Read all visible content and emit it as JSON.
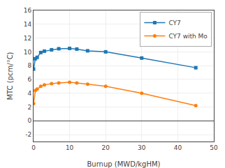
{
  "chart_data": {
    "type": "line",
    "xlabel": "Burnup (MWD/kgHM)",
    "ylabel": "MTC (pcm/°C)",
    "x": [
      0,
      0.5,
      1,
      2,
      3,
      5,
      7,
      10,
      12,
      15,
      20,
      30,
      45
    ],
    "series": [
      {
        "name": "CY7",
        "marker": "square",
        "values": [
          7.5,
          9.0,
          9.2,
          9.9,
          10.1,
          10.3,
          10.45,
          10.5,
          10.4,
          10.15,
          10.0,
          9.1,
          7.7
        ]
      },
      {
        "name": "CY7 with Mo",
        "marker": "circle",
        "values": [
          2.5,
          4.4,
          4.6,
          5.0,
          5.2,
          5.4,
          5.5,
          5.6,
          5.5,
          5.3,
          5.0,
          4.0,
          2.2
        ]
      }
    ],
    "xlim": [
      0,
      50
    ],
    "ylim": [
      -3,
      16
    ],
    "xticks": [
      0,
      10,
      20,
      30,
      40,
      50
    ],
    "yticks": [
      -2,
      0,
      2,
      4,
      6,
      8,
      10,
      12,
      14,
      16
    ],
    "grid": true,
    "legend": "upper right"
  }
}
